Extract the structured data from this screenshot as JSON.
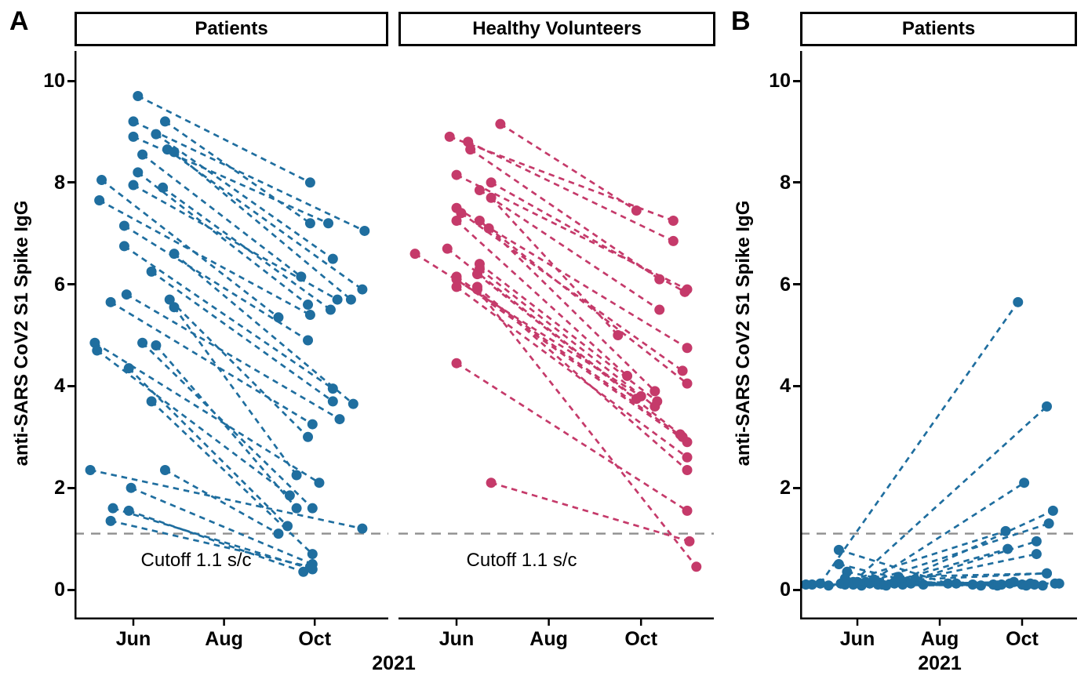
{
  "figure": {
    "panel_a_label": "A",
    "panel_b_label": "B",
    "y_axis": {
      "title": "anti-SARS CoV2 S1 Spike IgG",
      "ticks": [
        0,
        2,
        4,
        6,
        8,
        10
      ]
    },
    "x_axis": {
      "title": "2021",
      "tick_labels": [
        "Jun",
        "Aug",
        "Oct"
      ],
      "tick_months": [
        6,
        8,
        10
      ]
    },
    "cutoff": {
      "value": 1.1,
      "label": "Cutoff 1.1 s/c",
      "color": "#8f8f8f"
    },
    "colors": {
      "patients": "#1f6e9f",
      "healthy_volunteers": "#c53a6a",
      "axis": "#000000"
    }
  },
  "chart_data": [
    {
      "type": "line",
      "panel": "A",
      "facet_title": "Patients",
      "color_key": "patients",
      "x_unit": "month_of_2021",
      "ylim": [
        0,
        10
      ],
      "cutoff_label_shown": true,
      "pairs": [
        [
          6.1,
          9.7,
          9.9,
          8.0
        ],
        [
          6.0,
          9.2,
          11.1,
          7.05
        ],
        [
          6.7,
          9.2,
          9.9,
          7.2
        ],
        [
          6.0,
          8.9,
          10.3,
          7.2
        ],
        [
          6.5,
          8.95,
          10.4,
          6.5
        ],
        [
          6.2,
          8.55,
          9.7,
          6.15
        ],
        [
          6.75,
          8.65,
          11.05,
          5.9
        ],
        [
          6.9,
          8.6,
          10.8,
          5.7
        ],
        [
          6.1,
          8.2,
          9.85,
          5.6
        ],
        [
          5.3,
          8.05,
          9.2,
          5.35
        ],
        [
          6.0,
          7.95,
          10.5,
          5.7
        ],
        [
          6.65,
          7.9,
          10.35,
          5.5
        ],
        [
          5.25,
          7.65,
          9.9,
          5.4
        ],
        [
          5.8,
          7.15,
          9.85,
          4.9
        ],
        [
          5.8,
          6.75,
          10.4,
          3.95
        ],
        [
          6.9,
          6.6,
          10.85,
          3.65
        ],
        [
          6.4,
          6.25,
          10.4,
          3.7
        ],
        [
          5.85,
          5.8,
          10.55,
          3.35
        ],
        [
          5.5,
          5.65,
          9.95,
          3.25
        ],
        [
          6.8,
          5.7,
          9.85,
          3.0
        ],
        [
          6.9,
          5.55,
          9.6,
          2.25
        ],
        [
          5.15,
          4.85,
          10.1,
          2.1
        ],
        [
          5.2,
          4.7,
          9.45,
          1.85
        ],
        [
          6.2,
          4.85,
          9.95,
          1.6
        ],
        [
          6.5,
          4.8,
          9.6,
          1.6
        ],
        [
          5.9,
          4.35,
          9.4,
          1.25
        ],
        [
          6.4,
          3.7,
          9.95,
          0.7
        ],
        [
          5.05,
          2.35,
          11.05,
          1.2
        ],
        [
          6.7,
          2.35,
          9.2,
          1.1
        ],
        [
          5.95,
          2.0,
          9.95,
          0.5
        ],
        [
          5.55,
          1.6,
          9.95,
          0.4
        ],
        [
          5.9,
          1.55,
          9.75,
          0.35
        ],
        [
          5.5,
          1.35,
          9.9,
          0.45
        ]
      ]
    },
    {
      "type": "line",
      "panel": "A",
      "facet_title": "Healthy Volunteers",
      "color_key": "healthy_volunteers",
      "x_unit": "month_of_2021",
      "ylim": [
        0,
        10
      ],
      "cutoff_label_shown": true,
      "pairs": [
        [
          6.95,
          9.15,
          9.9,
          7.45
        ],
        [
          5.85,
          8.9,
          10.7,
          7.25
        ],
        [
          6.25,
          8.8,
          10.7,
          6.85
        ],
        [
          6.3,
          8.65,
          10.4,
          6.1
        ],
        [
          6.0,
          8.15,
          11.0,
          5.9
        ],
        [
          6.75,
          8.0,
          10.95,
          5.85
        ],
        [
          6.5,
          7.85,
          10.4,
          5.5
        ],
        [
          6.75,
          7.7,
          9.5,
          5.0
        ],
        [
          6.0,
          7.5,
          11.0,
          4.75
        ],
        [
          6.1,
          7.4,
          10.9,
          4.3
        ],
        [
          6.0,
          7.25,
          9.7,
          4.2
        ],
        [
          6.5,
          7.25,
          11.0,
          4.05
        ],
        [
          6.7,
          7.1,
          10.3,
          3.9
        ],
        [
          5.8,
          6.7,
          9.9,
          3.75
        ],
        [
          5.1,
          6.6,
          10.0,
          3.8
        ],
        [
          6.5,
          6.4,
          10.35,
          3.7
        ],
        [
          6.5,
          6.3,
          10.3,
          3.6
        ],
        [
          6.45,
          6.2,
          10.85,
          3.05
        ],
        [
          6.0,
          6.15,
          10.9,
          3.0
        ],
        [
          6.0,
          6.1,
          11.0,
          2.9
        ],
        [
          6.0,
          5.95,
          11.0,
          2.6
        ],
        [
          6.45,
          5.95,
          11.0,
          2.35
        ],
        [
          6.45,
          5.9,
          11.2,
          0.45
        ],
        [
          6.0,
          4.45,
          11.0,
          1.55
        ],
        [
          6.75,
          2.1,
          11.05,
          0.95
        ]
      ]
    },
    {
      "type": "line",
      "panel": "B",
      "facet_title": "Patients",
      "color_key": "patients",
      "x_unit": "month_of_2021",
      "ylim": [
        0,
        10
      ],
      "cutoff_label_shown": false,
      "pairs": [
        [
          5.1,
          0.12,
          9.9,
          5.65
        ],
        [
          5.9,
          0.15,
          10.6,
          3.6
        ],
        [
          6.4,
          0.2,
          10.05,
          2.1
        ],
        [
          6.9,
          0.12,
          10.75,
          1.55
        ],
        [
          6.1,
          0.1,
          10.65,
          1.3
        ],
        [
          5.6,
          0.12,
          9.6,
          1.15
        ],
        [
          7.2,
          0.15,
          10.35,
          0.95
        ],
        [
          6.6,
          0.1,
          9.65,
          0.8
        ],
        [
          7.4,
          0.2,
          10.35,
          0.7
        ],
        [
          6.2,
          0.15,
          10.6,
          0.32
        ],
        [
          5.55,
          0.78,
          8.2,
          0.12
        ],
        [
          5.55,
          0.5,
          7.6,
          0.1
        ],
        [
          5.75,
          0.35,
          7.1,
          0.12
        ],
        [
          5.7,
          0.22,
          8.8,
          0.1
        ],
        [
          4.9,
          0.1,
          9.3,
          0.1
        ],
        [
          5.3,
          0.08,
          10.9,
          0.12
        ],
        [
          5.6,
          0.12,
          9.0,
          0.08
        ],
        [
          5.9,
          0.1,
          10.2,
          0.12
        ],
        [
          6.1,
          0.08,
          9.5,
          0.1
        ],
        [
          6.3,
          0.12,
          10.5,
          0.08
        ],
        [
          6.5,
          0.1,
          9.8,
          0.15
        ],
        [
          6.7,
          0.08,
          10.0,
          0.1
        ],
        [
          6.9,
          0.15,
          10.8,
          0.12
        ],
        [
          7.1,
          0.1,
          9.4,
          0.08
        ],
        [
          7.3,
          0.12,
          10.3,
          0.1
        ],
        [
          5.7,
          0.1,
          9.7,
          0.12
        ],
        [
          6.0,
          0.15,
          10.1,
          0.08
        ],
        [
          7.0,
          0.25,
          10.6,
          0.32
        ],
        [
          4.75,
          0.1,
          8.4,
          0.12
        ]
      ]
    }
  ]
}
